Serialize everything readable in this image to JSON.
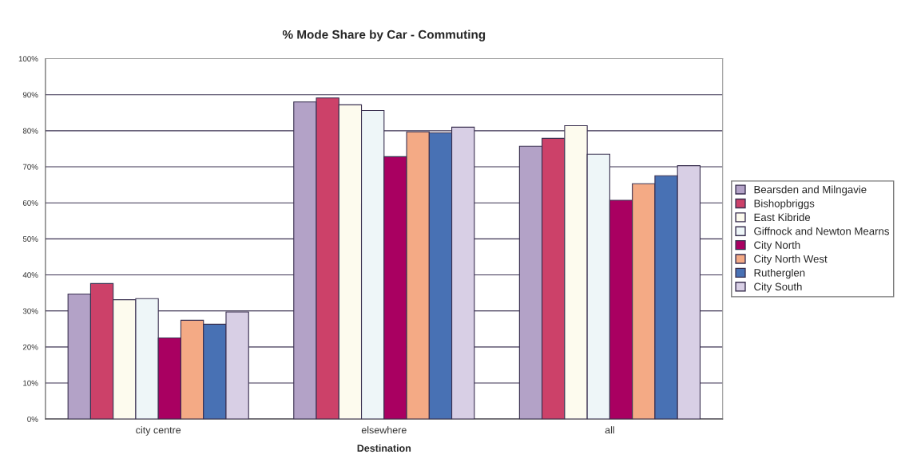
{
  "chart_data": {
    "type": "bar",
    "title": "% Mode Share by Car - Commuting",
    "xlabel": "Destination",
    "categories": [
      "city centre",
      "elsewhere",
      "all"
    ],
    "series": [
      {
        "name": "Bearsden and Milngavie",
        "color": "#b3a2c7",
        "values": [
          34.7,
          88.0,
          75.7
        ]
      },
      {
        "name": "Bishopbriggs",
        "color": "#cc4169",
        "values": [
          37.6,
          89.1,
          77.9
        ]
      },
      {
        "name": "East Kibride",
        "color": "#fdfbee",
        "values": [
          33.1,
          87.2,
          81.4
        ]
      },
      {
        "name": "Giffnock and Newton Mearns",
        "color": "#eef6f8",
        "values": [
          33.4,
          85.6,
          73.5
        ]
      },
      {
        "name": "City North",
        "color": "#a90061",
        "values": [
          22.5,
          72.8,
          60.7
        ]
      },
      {
        "name": "City North West",
        "color": "#f4aa85",
        "values": [
          27.4,
          79.7,
          65.3
        ]
      },
      {
        "name": "Rutherglen",
        "color": "#4871b4",
        "values": [
          26.3,
          79.4,
          67.5
        ]
      },
      {
        "name": "City South",
        "color": "#d8cfe5",
        "values": [
          29.7,
          81.0,
          70.3
        ]
      }
    ],
    "ylim": [
      0,
      100
    ],
    "yticks": [
      {
        "value": 0,
        "label": "0%"
      },
      {
        "value": 10,
        "label": "10%"
      },
      {
        "value": 20,
        "label": "20%"
      },
      {
        "value": 30,
        "label": "30%"
      },
      {
        "value": 40,
        "label": "40%"
      },
      {
        "value": 50,
        "label": "50%"
      },
      {
        "value": 60,
        "label": "60%"
      },
      {
        "value": 70,
        "label": "70%"
      },
      {
        "value": 80,
        "label": "80%"
      },
      {
        "value": 90,
        "label": "90%"
      },
      {
        "value": 100,
        "label": "100%"
      }
    ],
    "grid": "y",
    "legend": "right"
  }
}
